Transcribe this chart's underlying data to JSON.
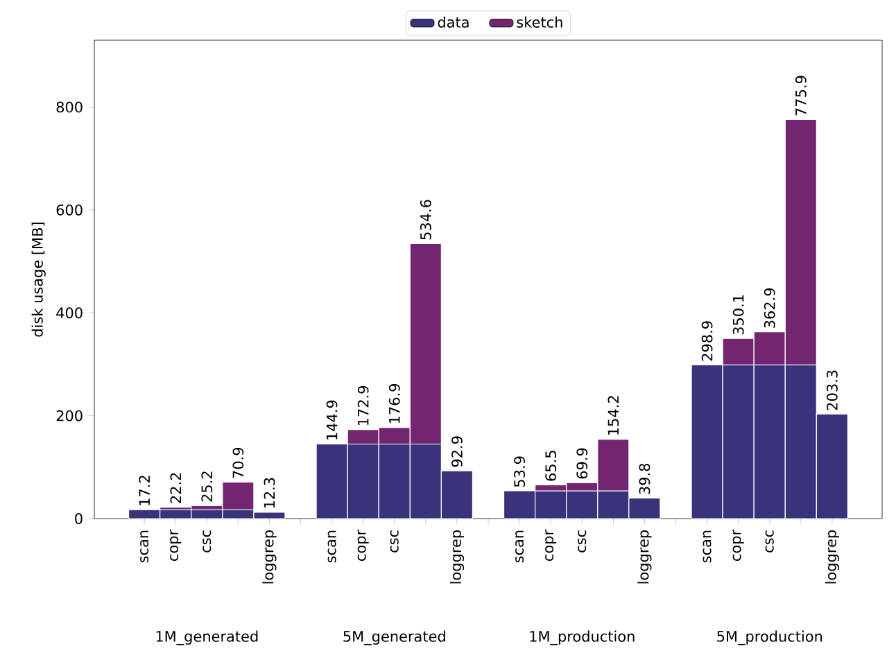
{
  "chart_data": {
    "type": "bar",
    "stacked": true,
    "ylabel": "disk usage [MB]",
    "categories": [
      "scan",
      "copr",
      "csc",
      null,
      "loggrep",
      null,
      "scan",
      "copr",
      "csc",
      null,
      "loggrep",
      null,
      "scan",
      "copr",
      "csc",
      null,
      "loggrep",
      null,
      "scan",
      "copr",
      "csc",
      null,
      "loggrep"
    ],
    "series": [
      {
        "name": "data",
        "color": "#38337a",
        "values": [
          17.2,
          17.2,
          17.2,
          17.2,
          12.3,
          null,
          144.9,
          144.9,
          144.9,
          144.9,
          92.9,
          null,
          53.9,
          53.9,
          53.9,
          53.9,
          39.8,
          null,
          298.9,
          298.9,
          298.9,
          298.9,
          203.3
        ]
      },
      {
        "name": "sketch",
        "color": "#72266f",
        "values": [
          null,
          5.0,
          8.0,
          53.7,
          null,
          null,
          null,
          28.0,
          32.0,
          389.7,
          null,
          null,
          null,
          11.6,
          16.0,
          100.3,
          null,
          null,
          null,
          51.2,
          64.0,
          477.0,
          null
        ]
      }
    ],
    "totals": [
      "17.2",
      "22.2",
      "25.2",
      "70.9",
      "12.3",
      null,
      "144.9",
      "172.9",
      "176.9",
      "534.6",
      "92.9",
      null,
      "53.9",
      "65.5",
      "69.9",
      "154.2",
      "39.8",
      null,
      "298.9",
      "350.1",
      "362.9",
      "775.9",
      "203.3"
    ],
    "ylim": [
      0,
      930
    ],
    "yticks": [
      0,
      200,
      400,
      600,
      800
    ],
    "legend": "top",
    "grid": false,
    "annotations": [
      "1M_generated",
      "5M_generated",
      "1M_production",
      "5M_production"
    ]
  }
}
